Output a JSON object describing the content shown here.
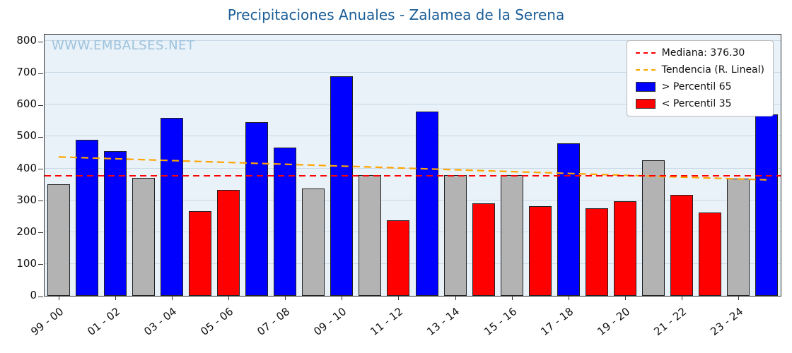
{
  "title": "Precipitaciones Anuales - Zalamea de la Serena",
  "watermark": "WWW.EMBALSES.NET",
  "chart_data": {
    "type": "bar",
    "title": "Precipitaciones Anuales - Zalamea de la Serena",
    "xlabel": "",
    "ylabel": "",
    "ylim": [
      0,
      820
    ],
    "yticks": [
      0,
      100,
      200,
      300,
      400,
      500,
      600,
      700,
      800
    ],
    "x_tick_labels": [
      "99 - 00",
      "01 - 02",
      "03 - 04",
      "05 - 06",
      "07 - 08",
      "09 - 10",
      "11 - 12",
      "13 - 14",
      "15 - 16",
      "17 - 18",
      "19 - 20",
      "21 - 22",
      "23 - 24"
    ],
    "x_tick_every": 2,
    "bars": [
      {
        "value": 350,
        "band": "mid"
      },
      {
        "value": 490,
        "band": "above"
      },
      {
        "value": 455,
        "band": "above"
      },
      {
        "value": 370,
        "band": "mid"
      },
      {
        "value": 558,
        "band": "above"
      },
      {
        "value": 265,
        "band": "below"
      },
      {
        "value": 332,
        "band": "below"
      },
      {
        "value": 545,
        "band": "above"
      },
      {
        "value": 466,
        "band": "above"
      },
      {
        "value": 336,
        "band": "mid"
      },
      {
        "value": 690,
        "band": "above"
      },
      {
        "value": 380,
        "band": "mid"
      },
      {
        "value": 238,
        "band": "below"
      },
      {
        "value": 578,
        "band": "above"
      },
      {
        "value": 378,
        "band": "mid"
      },
      {
        "value": 290,
        "band": "below"
      },
      {
        "value": 378,
        "band": "mid"
      },
      {
        "value": 281,
        "band": "below"
      },
      {
        "value": 478,
        "band": "above"
      },
      {
        "value": 274,
        "band": "below"
      },
      {
        "value": 298,
        "band": "below"
      },
      {
        "value": 425,
        "band": "mid"
      },
      {
        "value": 318,
        "band": "below"
      },
      {
        "value": 262,
        "band": "below"
      },
      {
        "value": 368,
        "band": "mid"
      },
      {
        "value": 570,
        "band": "above"
      }
    ],
    "median": {
      "value": 376.3,
      "color": "#ff0000"
    },
    "trend": {
      "start": 436,
      "end": 364,
      "color": "#ffa500"
    },
    "band_colors": {
      "above": "#0000ff",
      "below": "#ff0000",
      "mid": "#b3b3b3"
    },
    "legend": [
      {
        "type": "line",
        "color": "#ff0000",
        "label": "Mediana: 376.30"
      },
      {
        "type": "line",
        "color": "#ffa500",
        "label": "Tendencia (R. Lineal)"
      },
      {
        "type": "patch",
        "color": "#0000ff",
        "label": " > Percentil 65"
      },
      {
        "type": "patch",
        "color": "#ff0000",
        "label": " < Percentil 35"
      }
    ],
    "grid": true,
    "legend_position": "top-right"
  }
}
